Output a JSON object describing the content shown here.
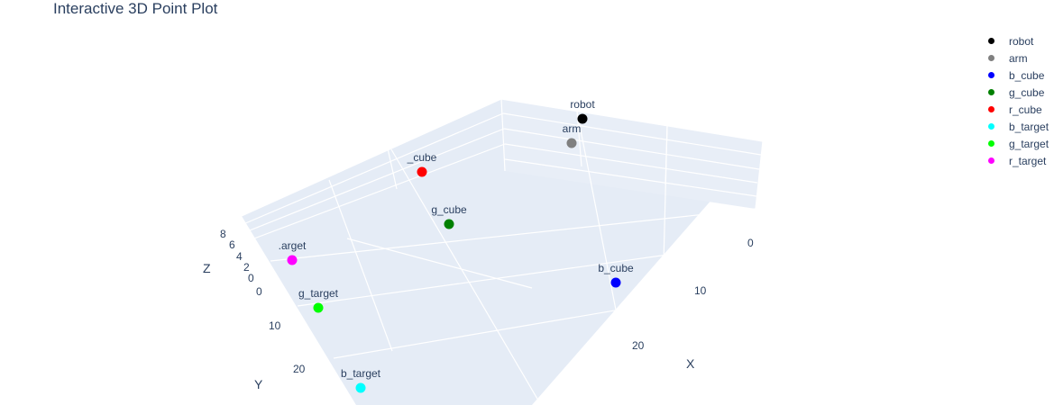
{
  "chart_data": {
    "type": "scatter3d",
    "title": "Interactive 3D Point Plot",
    "axes": {
      "x": {
        "label": "X",
        "ticks": [
          "0",
          "10",
          "20"
        ]
      },
      "y": {
        "label": "Y",
        "ticks": [
          "0",
          "10",
          "20"
        ]
      },
      "z": {
        "label": "Z",
        "ticks": [
          "0",
          "2",
          "4",
          "6",
          "8"
        ]
      }
    },
    "legend_position": "top-right",
    "series": [
      {
        "name": "robot",
        "label": "robot",
        "color": "#000000"
      },
      {
        "name": "arm",
        "label": "arm",
        "color": "#808080"
      },
      {
        "name": "b_cube",
        "label": "b_cube",
        "color": "#0000ff"
      },
      {
        "name": "g_cube",
        "label": "g_cube",
        "color": "#008000"
      },
      {
        "name": "r_cube",
        "label": "_cube",
        "color": "#ff0000"
      },
      {
        "name": "b_target",
        "label": "b_target",
        "color": "#00ffff"
      },
      {
        "name": "g_target",
        "label": "g_target",
        "color": "#00ff00"
      },
      {
        "name": "r_target",
        "label": ".arget",
        "color": "#ff00ff"
      }
    ]
  }
}
